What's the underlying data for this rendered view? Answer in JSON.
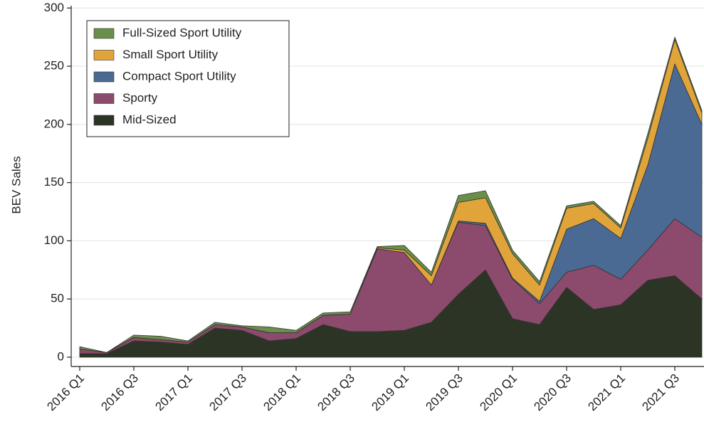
{
  "chart_data": {
    "type": "stacked_area",
    "y_label": "BEV Sales",
    "categories": [
      "2016 Q1",
      null,
      "2016 Q3",
      null,
      "2017 Q1",
      null,
      "2017 Q3",
      null,
      "2018 Q1",
      null,
      "2018 Q3",
      null,
      "2019 Q1",
      null,
      "2019 Q3",
      null,
      "2020 Q1",
      null,
      "2020 Q3",
      null,
      "2021 Q1",
      null,
      "2021 Q3",
      null
    ],
    "series": [
      {
        "name": "Full-Sized Sport Utility",
        "color": "#6a8f4a",
        "values": [
          2,
          0,
          2,
          3,
          1,
          2,
          1,
          5,
          2,
          2,
          2,
          1,
          4,
          3,
          6,
          6,
          3,
          3,
          2,
          2,
          2,
          4,
          2,
          2
        ]
      },
      {
        "name": "Small Sport Utility",
        "color": "#e0a43a",
        "values": [
          0,
          0,
          0,
          0,
          0,
          0,
          0,
          0,
          0,
          0,
          0,
          1,
          2,
          8,
          16,
          22,
          21,
          14,
          18,
          13,
          9,
          23,
          21,
          10
        ]
      },
      {
        "name": "Compact Sport Utility",
        "color": "#4a6a94",
        "values": [
          0,
          0,
          0,
          0,
          0,
          0,
          0,
          0,
          0,
          0,
          0,
          0,
          0,
          0,
          1,
          2,
          1,
          2,
          37,
          40,
          35,
          73,
          133,
          97
        ]
      },
      {
        "name": "Sporty",
        "color": "#8c4a6c",
        "values": [
          4,
          1,
          3,
          2,
          2,
          3,
          3,
          7,
          5,
          8,
          15,
          71,
          67,
          32,
          62,
          38,
          34,
          18,
          13,
          38,
          22,
          26,
          49,
          53
        ]
      },
      {
        "name": "Mid-Sized",
        "color": "#2c3525",
        "values": [
          3,
          3,
          14,
          13,
          11,
          25,
          23,
          14,
          16,
          28,
          22,
          22,
          23,
          30,
          54,
          75,
          33,
          28,
          60,
          41,
          45,
          66,
          70,
          50
        ]
      }
    ],
    "ylim": [
      -8,
      302
    ],
    "yticks": [
      0,
      50,
      100,
      150,
      200,
      250,
      300
    ],
    "grid": true,
    "legend": "upper left"
  }
}
